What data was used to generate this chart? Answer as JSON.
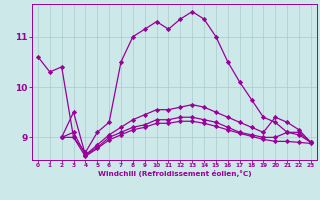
{
  "xlabel": "Windchill (Refroidissement éolien,°C)",
  "ylabel": "",
  "bg_color": "#cce8e8",
  "line_color": "#990099",
  "grid_color": "#aacccc",
  "xlim": [
    -0.5,
    23.5
  ],
  "ylim": [
    8.55,
    11.65
  ],
  "yticks": [
    9,
    10,
    11
  ],
  "xticks": [
    0,
    1,
    2,
    3,
    4,
    5,
    6,
    7,
    8,
    9,
    10,
    11,
    12,
    13,
    14,
    15,
    16,
    17,
    18,
    19,
    20,
    21,
    22,
    23
  ],
  "series": [
    {
      "x": [
        0,
        1,
        2,
        3,
        4,
        5,
        6,
        7,
        8,
        9,
        10,
        11,
        12,
        13,
        14,
        15,
        16,
        17,
        18,
        19,
        20,
        21,
        22,
        23
      ],
      "y": [
        10.6,
        10.3,
        10.4,
        9.0,
        8.7,
        9.1,
        9.3,
        10.5,
        11.0,
        11.15,
        11.3,
        11.15,
        11.35,
        11.5,
        11.35,
        11.0,
        10.5,
        10.1,
        9.75,
        9.4,
        9.3,
        9.1,
        9.1,
        8.9
      ]
    },
    {
      "x": [
        2,
        3,
        4,
        5,
        6,
        7,
        8,
        9,
        10,
        11,
        12,
        13,
        14,
        15,
        16,
        17,
        18,
        19,
        20,
        21,
        22,
        23
      ],
      "y": [
        9.0,
        9.5,
        8.65,
        8.85,
        9.05,
        9.2,
        9.35,
        9.45,
        9.55,
        9.55,
        9.6,
        9.65,
        9.6,
        9.5,
        9.4,
        9.3,
        9.2,
        9.1,
        9.4,
        9.3,
        9.15,
        8.9
      ]
    },
    {
      "x": [
        2,
        3,
        4,
        5,
        6,
        7,
        8,
        9,
        10,
        11,
        12,
        13,
        14,
        15,
        16,
        17,
        18,
        19,
        20,
        21,
        22,
        23
      ],
      "y": [
        9.0,
        9.1,
        8.65,
        8.8,
        9.0,
        9.1,
        9.2,
        9.25,
        9.35,
        9.35,
        9.4,
        9.4,
        9.35,
        9.3,
        9.2,
        9.1,
        9.05,
        9.0,
        9.0,
        9.1,
        9.05,
        8.9
      ]
    },
    {
      "x": [
        2,
        3,
        4,
        5,
        6,
        7,
        8,
        9,
        10,
        11,
        12,
        13,
        14,
        15,
        16,
        17,
        18,
        19,
        20,
        21,
        22,
        23
      ],
      "y": [
        9.0,
        9.0,
        8.62,
        8.78,
        8.95,
        9.05,
        9.15,
        9.2,
        9.28,
        9.28,
        9.32,
        9.32,
        9.28,
        9.22,
        9.15,
        9.08,
        9.02,
        8.96,
        8.92,
        8.92,
        8.9,
        8.88
      ]
    }
  ]
}
